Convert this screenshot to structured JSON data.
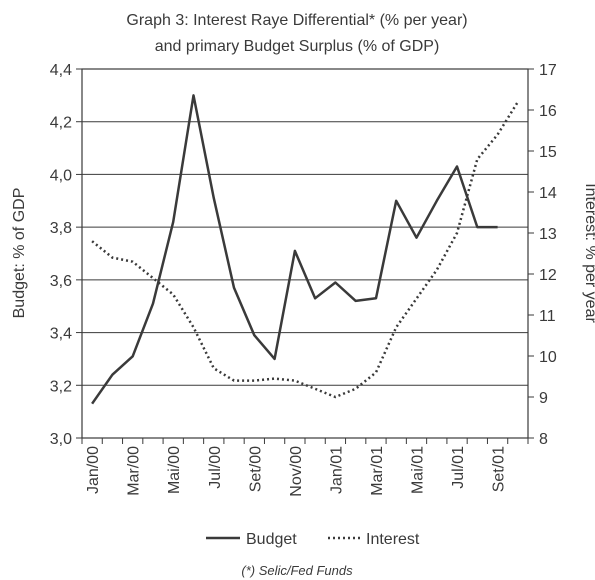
{
  "chart_data": {
    "type": "line",
    "title_line1": "Graph 3: Interest Raye Differential* (% per year)",
    "title_line2": "and primary Budget Surplus (% of GDP)",
    "ylabel_left": "Budget: % of GDP",
    "ylabel_right": "Interest: % per year",
    "ylim_left": [
      3.0,
      4.4
    ],
    "ylim_right": [
      8,
      17
    ],
    "yticks_left": [
      "3,0",
      "3,2",
      "3,4",
      "3,6",
      "3,8",
      "4,0",
      "4,2",
      "4,4"
    ],
    "yticks_right": [
      "8",
      "9",
      "10",
      "11",
      "12",
      "13",
      "14",
      "15",
      "16",
      "17"
    ],
    "x_labels": [
      "Jan/00",
      "Mar/00",
      "Mai/00",
      "Jul/00",
      "Set/00",
      "Nov/00",
      "Jan/01",
      "Mar/01",
      "Mai/01",
      "Jul/01",
      "Set/01"
    ],
    "grid": "horizontal",
    "legend_position": "bottom",
    "series": [
      {
        "name": "Budget",
        "axis": "left",
        "style": "solid",
        "color": "#3a3a3a",
        "values": [
          [
            0,
            3.13
          ],
          [
            1,
            3.24
          ],
          [
            2,
            3.31
          ],
          [
            3,
            3.51
          ],
          [
            4,
            3.82
          ],
          [
            5,
            4.3
          ],
          [
            6,
            3.91
          ],
          [
            7,
            3.57
          ],
          [
            8,
            3.39
          ],
          [
            9,
            3.3
          ],
          [
            10,
            3.71
          ],
          [
            11,
            3.53
          ],
          [
            12,
            3.59
          ],
          [
            13,
            3.52
          ],
          [
            14,
            3.53
          ],
          [
            15,
            3.9
          ],
          [
            16,
            3.76
          ],
          [
            17,
            3.9
          ],
          [
            18,
            4.03
          ],
          [
            19,
            3.8
          ],
          [
            20,
            3.8
          ]
        ]
      },
      {
        "name": "Interest",
        "axis": "right",
        "style": "dotted",
        "color": "#3a3a3a",
        "values": [
          [
            0,
            12.8
          ],
          [
            1,
            12.4
          ],
          [
            2,
            12.3
          ],
          [
            3,
            11.9
          ],
          [
            4,
            11.5
          ],
          [
            5,
            10.7
          ],
          [
            6,
            9.7
          ],
          [
            7,
            9.4
          ],
          [
            8,
            9.4
          ],
          [
            9,
            9.45
          ],
          [
            10,
            9.4
          ],
          [
            11,
            9.2
          ],
          [
            12,
            9.0
          ],
          [
            13,
            9.2
          ],
          [
            14,
            9.6
          ],
          [
            15,
            10.7
          ],
          [
            16,
            11.4
          ],
          [
            17,
            12.1
          ],
          [
            18,
            13.0
          ],
          [
            19,
            14.8
          ],
          [
            20,
            15.4
          ],
          [
            21,
            16.2
          ]
        ]
      }
    ],
    "footnote": "(*) Selic/Fed Funds"
  }
}
